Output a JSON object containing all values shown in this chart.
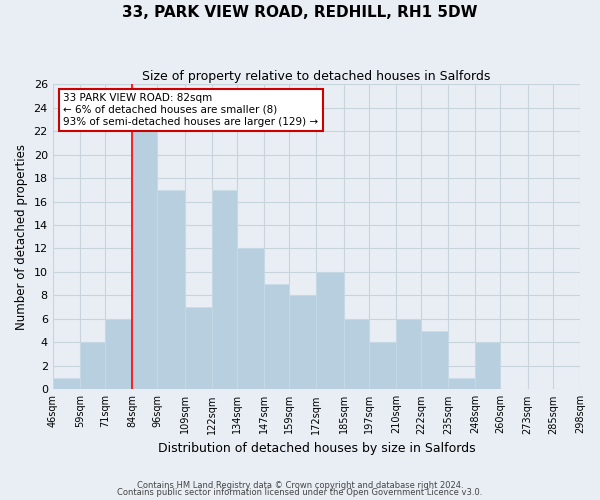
{
  "title": "33, PARK VIEW ROAD, REDHILL, RH1 5DW",
  "subtitle": "Size of property relative to detached houses in Salfords",
  "xlabel": "Distribution of detached houses by size in Salfords",
  "ylabel": "Number of detached properties",
  "bin_edges": [
    46,
    59,
    71,
    84,
    96,
    109,
    122,
    134,
    147,
    159,
    172,
    185,
    197,
    210,
    222,
    235,
    248,
    260,
    273,
    285,
    298
  ],
  "bar_heights": [
    1,
    4,
    6,
    22,
    17,
    7,
    17,
    12,
    9,
    8,
    10,
    6,
    4,
    6,
    5,
    1,
    4,
    0,
    0,
    0
  ],
  "bar_color": "#b8cfe0",
  "bar_edgecolor": "#c8dce8",
  "grid_color": "#c8d4dc",
  "red_line_x": 84,
  "annotation_title": "33 PARK VIEW ROAD: 82sqm",
  "annotation_line1": "← 6% of detached houses are smaller (8)",
  "annotation_line2": "93% of semi-detached houses are larger (129) →",
  "annotation_box_facecolor": "#ffffff",
  "annotation_box_edgecolor": "#cc0000",
  "ylim": [
    0,
    26
  ],
  "yticks": [
    0,
    2,
    4,
    6,
    8,
    10,
    12,
    14,
    16,
    18,
    20,
    22,
    24,
    26
  ],
  "footer1": "Contains HM Land Registry data © Crown copyright and database right 2024.",
  "footer2": "Contains public sector information licensed under the Open Government Licence v3.0.",
  "background_color": "#e8eef4",
  "plot_bg_color": "#e8eef4"
}
